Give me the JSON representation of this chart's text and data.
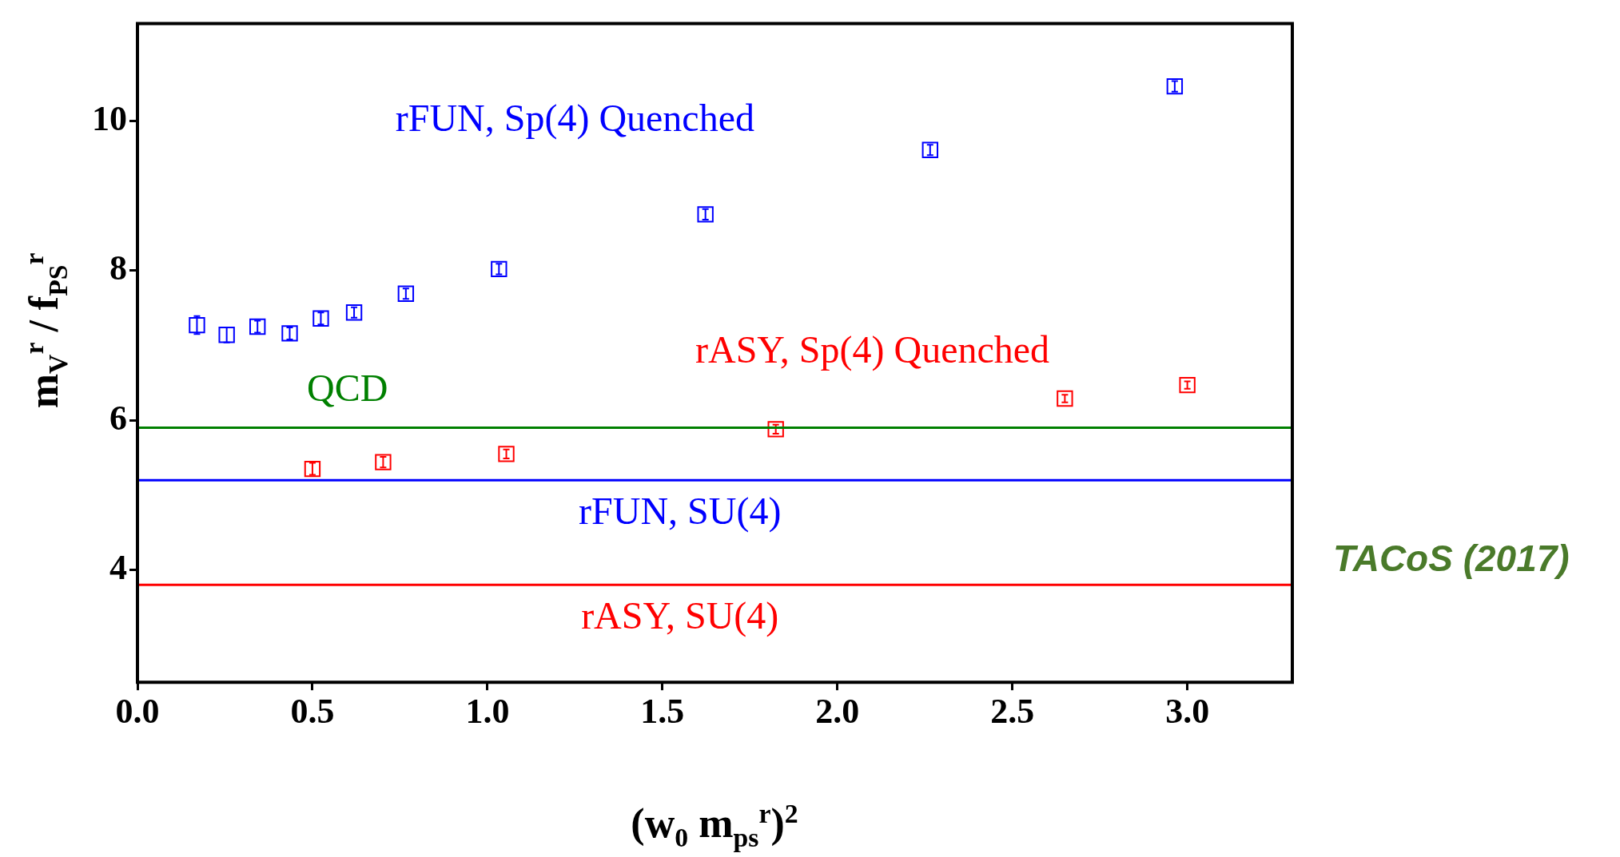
{
  "chart_data": {
    "type": "scatter",
    "xlabel": "(w$_{0}$ m$_{ps}$$^{r}$)$^{2}$",
    "ylabel": "m$_{V}$$^{r}$ / f$_{PS}$$^{r}$",
    "xlim": [
      0,
      3.3
    ],
    "ylim": [
      2.5,
      11.3
    ],
    "xticks": [
      {
        "value": 0,
        "label": "0.0"
      },
      0.5,
      {
        "value": 1,
        "label": "1.0"
      },
      1.5,
      {
        "value": 2,
        "label": "2.0"
      },
      2.5,
      {
        "value": 3,
        "label": "3.0"
      }
    ],
    "yticks": [
      4,
      6,
      8,
      10
    ],
    "marker": "square",
    "series": [
      {
        "name": "rFUN, Sp(4) Quenched",
        "color": "#0000ff",
        "x": [
          0.17,
          0.255,
          0.343,
          0.435,
          0.524,
          0.619,
          0.767,
          1.033,
          1.623,
          2.265,
          2.964
        ],
        "values": [
          7.27,
          7.14,
          7.25,
          7.16,
          7.36,
          7.44,
          7.69,
          8.02,
          8.75,
          9.61,
          10.46
        ],
        "errors": [
          0.12,
          0.1,
          0.08,
          0.08,
          0.08,
          0.07,
          0.07,
          0.07,
          0.07,
          0.07,
          0.07
        ]
      },
      {
        "name": "rASY, Sp(4) Quenched",
        "color": "#ff0000",
        "x": [
          0.5,
          0.702,
          1.054,
          1.824,
          2.65,
          3.0
        ],
        "values": [
          5.35,
          5.44,
          5.55,
          5.88,
          6.29,
          6.47
        ],
        "errors": [
          0.08,
          0.07,
          0.06,
          0.06,
          0.05,
          0.05
        ]
      }
    ],
    "ref_lines": [
      {
        "axis": "y",
        "value": 5.9,
        "label": "QCD",
        "color": "#008000"
      },
      {
        "axis": "y",
        "value": 5.2,
        "label": "rFUN, SU(4)",
        "color": "#0000ff"
      },
      {
        "axis": "y",
        "value": 3.8,
        "label": "rASY, SU(4)",
        "color": "#ff0000"
      }
    ],
    "annotations": [
      "TACoS (2017)"
    ]
  }
}
